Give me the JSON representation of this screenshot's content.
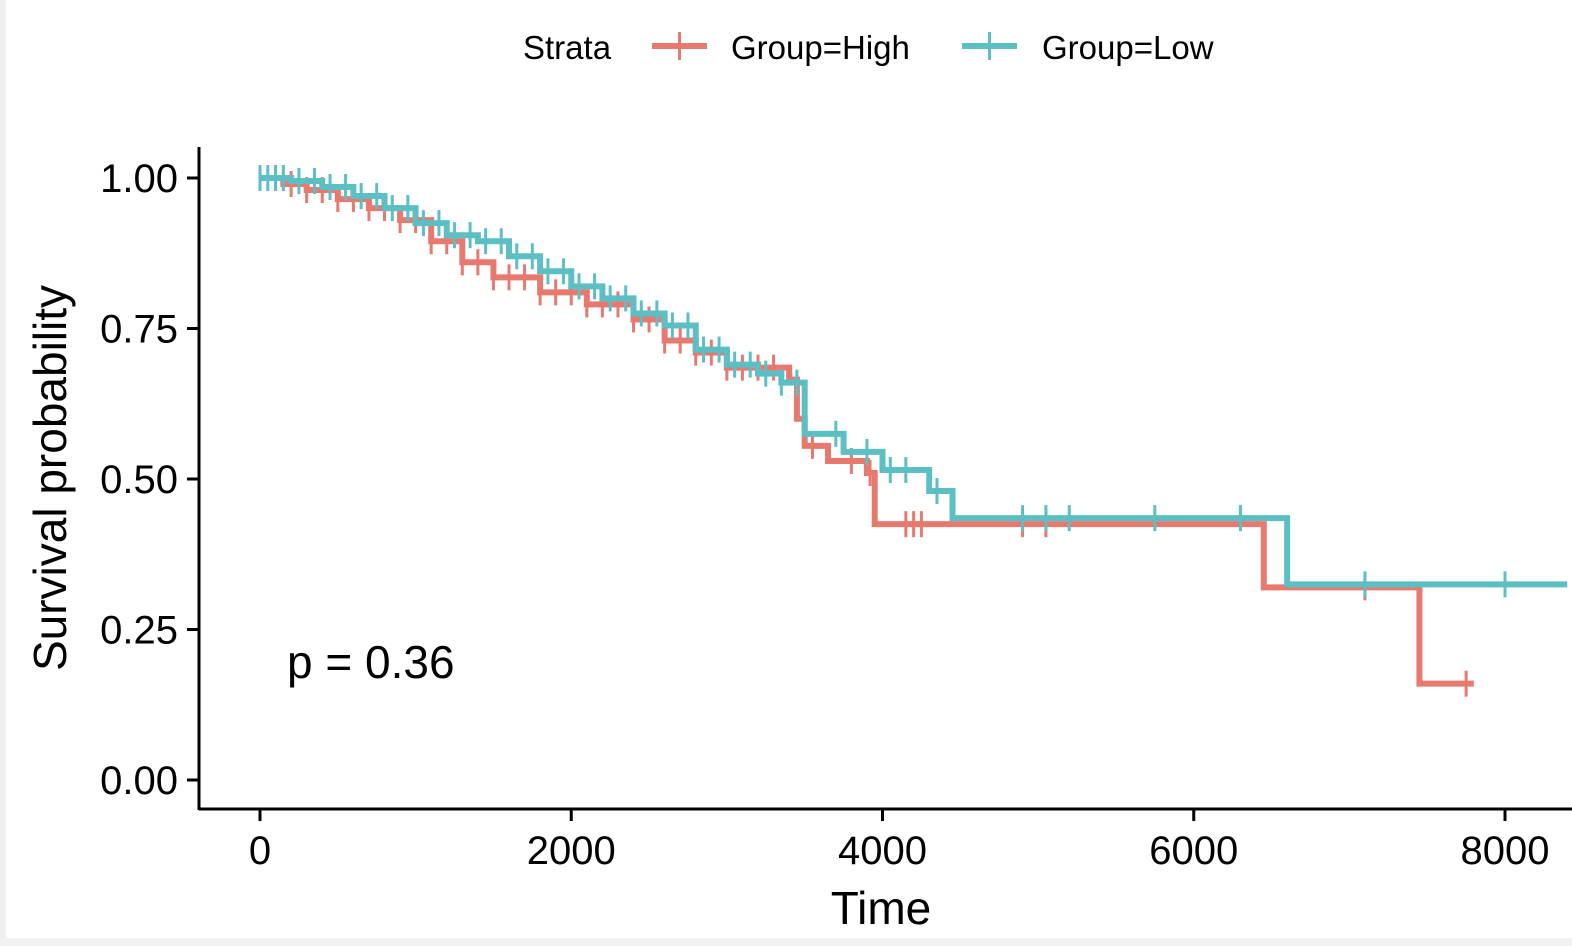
{
  "chart_data": {
    "type": "line",
    "subtype": "kaplan-meier-step",
    "xlabel": "Time",
    "ylabel": "Survival probability",
    "xlim": [
      -200,
      8400
    ],
    "ylim": [
      -0.05,
      1.05
    ],
    "x_ticks": [
      0,
      2000,
      4000,
      6000,
      8000
    ],
    "x_tick_labels": [
      "0",
      "2000",
      "4000",
      "6000",
      "8000"
    ],
    "y_ticks": [
      0,
      0.25,
      0.5,
      0.75,
      1.0
    ],
    "y_tick_labels": [
      "0.00",
      "0.25",
      "0.50",
      "0.75",
      "1.00"
    ],
    "grid": false,
    "legend": {
      "position": "top",
      "title": "Strata"
    },
    "annotation": "p = 0.36",
    "series": [
      {
        "name": "Group=High",
        "color": "#E7796F",
        "steps": [
          [
            0,
            1.0
          ],
          [
            150,
            0.99
          ],
          [
            300,
            0.98
          ],
          [
            500,
            0.965
          ],
          [
            700,
            0.95
          ],
          [
            900,
            0.93
          ],
          [
            1100,
            0.895
          ],
          [
            1300,
            0.86
          ],
          [
            1500,
            0.835
          ],
          [
            1800,
            0.81
          ],
          [
            2100,
            0.79
          ],
          [
            2400,
            0.765
          ],
          [
            2600,
            0.73
          ],
          [
            2800,
            0.71
          ],
          [
            3000,
            0.685
          ],
          [
            3400,
            0.665
          ],
          [
            3450,
            0.6
          ],
          [
            3500,
            0.555
          ],
          [
            3650,
            0.53
          ],
          [
            3900,
            0.51
          ],
          [
            3950,
            0.425
          ],
          [
            6450,
            0.32
          ],
          [
            7450,
            0.16
          ],
          [
            7800,
            0.16
          ]
        ],
        "censor_times": [
          100,
          200,
          300,
          400,
          500,
          600,
          700,
          800,
          900,
          1000,
          1100,
          1200,
          1300,
          1400,
          1500,
          1600,
          1700,
          1800,
          1900,
          2000,
          2100,
          2200,
          2300,
          2400,
          2500,
          2600,
          2700,
          2800,
          2900,
          3000,
          3100,
          3200,
          3300,
          3550,
          3800,
          3920,
          4150,
          4200,
          4250,
          4900,
          5050,
          7100,
          7750
        ]
      },
      {
        "name": "Group=Low",
        "color": "#5BBFC4",
        "steps": [
          [
            0,
            1.0
          ],
          [
            200,
            0.995
          ],
          [
            400,
            0.985
          ],
          [
            600,
            0.97
          ],
          [
            800,
            0.95
          ],
          [
            1000,
            0.925
          ],
          [
            1200,
            0.905
          ],
          [
            1400,
            0.895
          ],
          [
            1600,
            0.87
          ],
          [
            1800,
            0.845
          ],
          [
            2000,
            0.82
          ],
          [
            2200,
            0.8
          ],
          [
            2400,
            0.775
          ],
          [
            2600,
            0.755
          ],
          [
            2800,
            0.715
          ],
          [
            3000,
            0.69
          ],
          [
            3200,
            0.675
          ],
          [
            3350,
            0.66
          ],
          [
            3500,
            0.575
          ],
          [
            3750,
            0.545
          ],
          [
            4000,
            0.515
          ],
          [
            4300,
            0.48
          ],
          [
            4450,
            0.435
          ],
          [
            6600,
            0.325
          ],
          [
            8400,
            0.325
          ]
        ],
        "censor_times": [
          0,
          50,
          100,
          150,
          250,
          350,
          450,
          550,
          650,
          750,
          850,
          950,
          1050,
          1150,
          1250,
          1350,
          1450,
          1550,
          1650,
          1750,
          1850,
          1950,
          2050,
          2150,
          2250,
          2350,
          2450,
          2550,
          2650,
          2750,
          2850,
          2950,
          3050,
          3150,
          3250,
          3350,
          3450,
          3700,
          3900,
          4050,
          4150,
          4350,
          4900,
          5050,
          5200,
          5750,
          6300,
          7100,
          8000
        ]
      }
    ]
  }
}
